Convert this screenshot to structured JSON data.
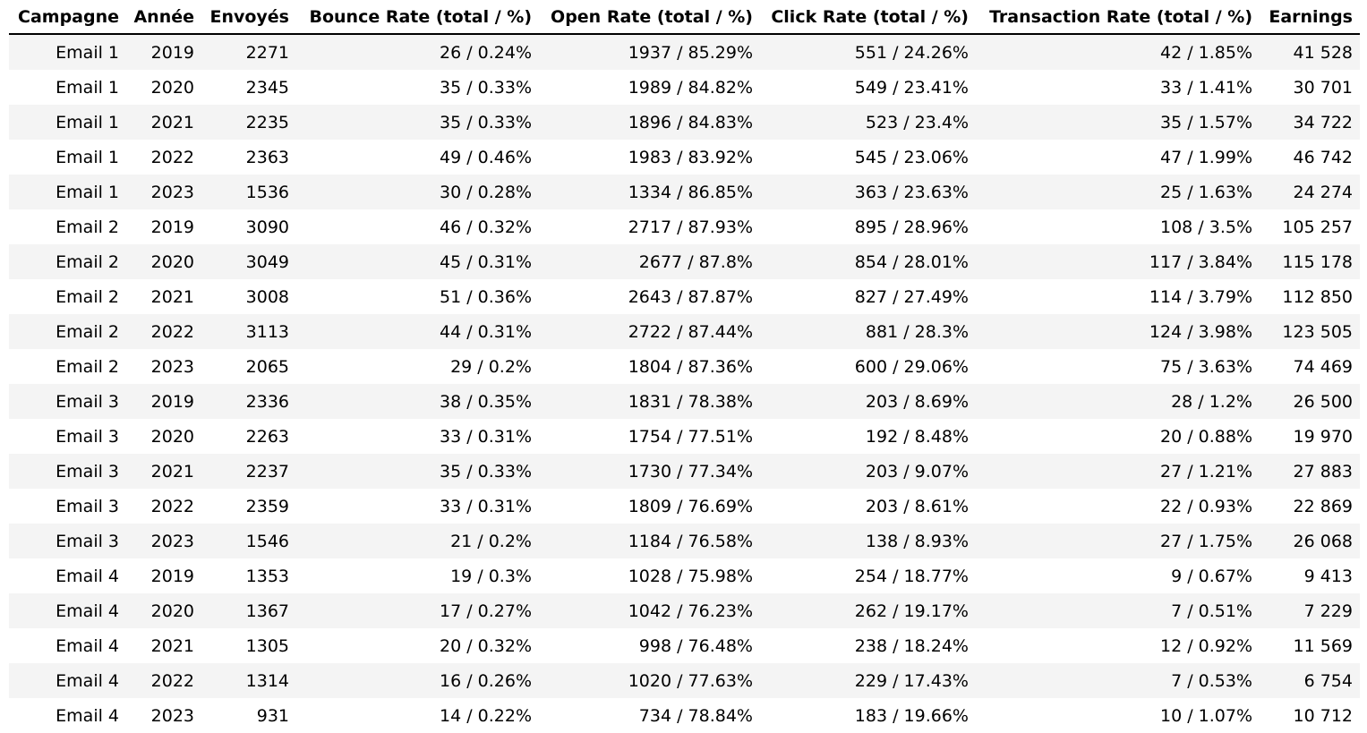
{
  "table": {
    "headers": [
      "Campagne",
      "Année",
      "Envoyés",
      "Bounce Rate (total / %)",
      "Open Rate (total / %)",
      "Click Rate (total / %)",
      "Transaction Rate (total / %)",
      "Earnings"
    ],
    "rows": [
      [
        "Email 1",
        "2019",
        "2271",
        "26 / 0.24%",
        "1937 / 85.29%",
        "551 / 24.26%",
        "42 / 1.85%",
        "41 528"
      ],
      [
        "Email 1",
        "2020",
        "2345",
        "35 / 0.33%",
        "1989 / 84.82%",
        "549 / 23.41%",
        "33 / 1.41%",
        "30 701"
      ],
      [
        "Email 1",
        "2021",
        "2235",
        "35 / 0.33%",
        "1896 / 84.83%",
        "523 / 23.4%",
        "35 / 1.57%",
        "34 722"
      ],
      [
        "Email 1",
        "2022",
        "2363",
        "49 / 0.46%",
        "1983 / 83.92%",
        "545 / 23.06%",
        "47 / 1.99%",
        "46 742"
      ],
      [
        "Email 1",
        "2023",
        "1536",
        "30 / 0.28%",
        "1334 / 86.85%",
        "363 / 23.63%",
        "25 / 1.63%",
        "24 274"
      ],
      [
        "Email 2",
        "2019",
        "3090",
        "46 / 0.32%",
        "2717 / 87.93%",
        "895 / 28.96%",
        "108 / 3.5%",
        "105 257"
      ],
      [
        "Email 2",
        "2020",
        "3049",
        "45 / 0.31%",
        "2677 / 87.8%",
        "854 / 28.01%",
        "117 / 3.84%",
        "115 178"
      ],
      [
        "Email 2",
        "2021",
        "3008",
        "51 / 0.36%",
        "2643 / 87.87%",
        "827 / 27.49%",
        "114 / 3.79%",
        "112 850"
      ],
      [
        "Email 2",
        "2022",
        "3113",
        "44 / 0.31%",
        "2722 / 87.44%",
        "881 / 28.3%",
        "124 / 3.98%",
        "123 505"
      ],
      [
        "Email 2",
        "2023",
        "2065",
        "29 / 0.2%",
        "1804 / 87.36%",
        "600 / 29.06%",
        "75 / 3.63%",
        "74 469"
      ],
      [
        "Email 3",
        "2019",
        "2336",
        "38 / 0.35%",
        "1831 / 78.38%",
        "203 / 8.69%",
        "28 / 1.2%",
        "26 500"
      ],
      [
        "Email 3",
        "2020",
        "2263",
        "33 / 0.31%",
        "1754 / 77.51%",
        "192 / 8.48%",
        "20 / 0.88%",
        "19 970"
      ],
      [
        "Email 3",
        "2021",
        "2237",
        "35 / 0.33%",
        "1730 / 77.34%",
        "203 / 9.07%",
        "27 / 1.21%",
        "27 883"
      ],
      [
        "Email 3",
        "2022",
        "2359",
        "33 / 0.31%",
        "1809 / 76.69%",
        "203 / 8.61%",
        "22 / 0.93%",
        "22 869"
      ],
      [
        "Email 3",
        "2023",
        "1546",
        "21 / 0.2%",
        "1184 / 76.58%",
        "138 / 8.93%",
        "27 / 1.75%",
        "26 068"
      ],
      [
        "Email 4",
        "2019",
        "1353",
        "19 / 0.3%",
        "1028 / 75.98%",
        "254 / 18.77%",
        "9 / 0.67%",
        "9 413"
      ],
      [
        "Email 4",
        "2020",
        "1367",
        "17 / 0.27%",
        "1042 / 76.23%",
        "262 / 19.17%",
        "7 / 0.51%",
        "7 229"
      ],
      [
        "Email 4",
        "2021",
        "1305",
        "20 / 0.32%",
        "998 / 76.48%",
        "238 / 18.24%",
        "12 / 0.92%",
        "11 569"
      ],
      [
        "Email 4",
        "2022",
        "1314",
        "16 / 0.26%",
        "1020 / 77.63%",
        "229 / 17.43%",
        "7 / 0.53%",
        "6 754"
      ],
      [
        "Email 4",
        "2023",
        "931",
        "14 / 0.22%",
        "734 / 78.84%",
        "183 / 19.66%",
        "10 / 1.07%",
        "10 712"
      ]
    ]
  },
  "colors": {
    "stripe": "#f4f4f4",
    "background": "#ffffff",
    "text": "#000000",
    "header_rule": "#000000"
  }
}
